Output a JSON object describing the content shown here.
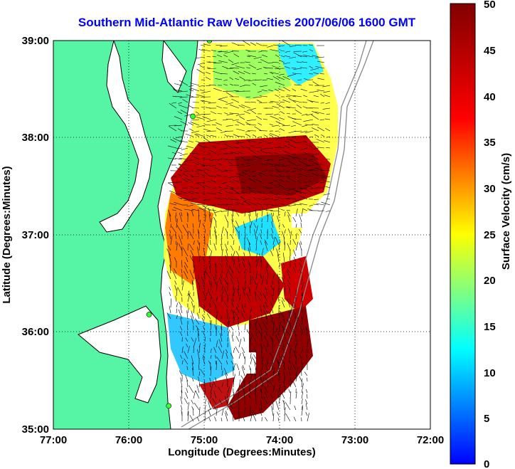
{
  "title": "Southern Mid-Atlantic Raw Velocities 2007/06/06 1600 GMT",
  "x_axis": {
    "label": "Longitude (Degrees:Minutes)",
    "ticks": [
      "77:00",
      "76:00",
      "75:00",
      "74:00",
      "73:00",
      "72:00"
    ]
  },
  "y_axis": {
    "label": "Latitude (Degrees:Minutes)",
    "ticks": [
      "39:00",
      "38:00",
      "37:00",
      "36:00",
      "35:00"
    ]
  },
  "colorbar": {
    "label": "Surface Velocity (cm/s)",
    "ticks": [
      "50",
      "45",
      "40",
      "35",
      "30",
      "25",
      "20",
      "15",
      "10",
      "5",
      "0"
    ],
    "min": 0,
    "max": 50,
    "colormap": "jet"
  },
  "colors": {
    "land": "#55f5a5",
    "ocean": "#ffffff",
    "title": "#0000ff",
    "station": "#33ff33",
    "vector": "#000000",
    "bathymetry": "#888888"
  },
  "chart_data": {
    "type": "heatmap",
    "extent": {
      "lon": [
        -77,
        -72
      ],
      "lat": [
        35,
        39
      ]
    },
    "value_range": [
      0,
      50
    ],
    "units": "cm/s",
    "grid_lines": "dotted",
    "stations": [
      {
        "lon": -74.93,
        "lat": 39.0
      },
      {
        "lon": -75.15,
        "lat": 38.22
      },
      {
        "lon": -75.73,
        "lat": 36.18
      },
      {
        "lon": -75.47,
        "lat": 35.24
      }
    ]
  }
}
